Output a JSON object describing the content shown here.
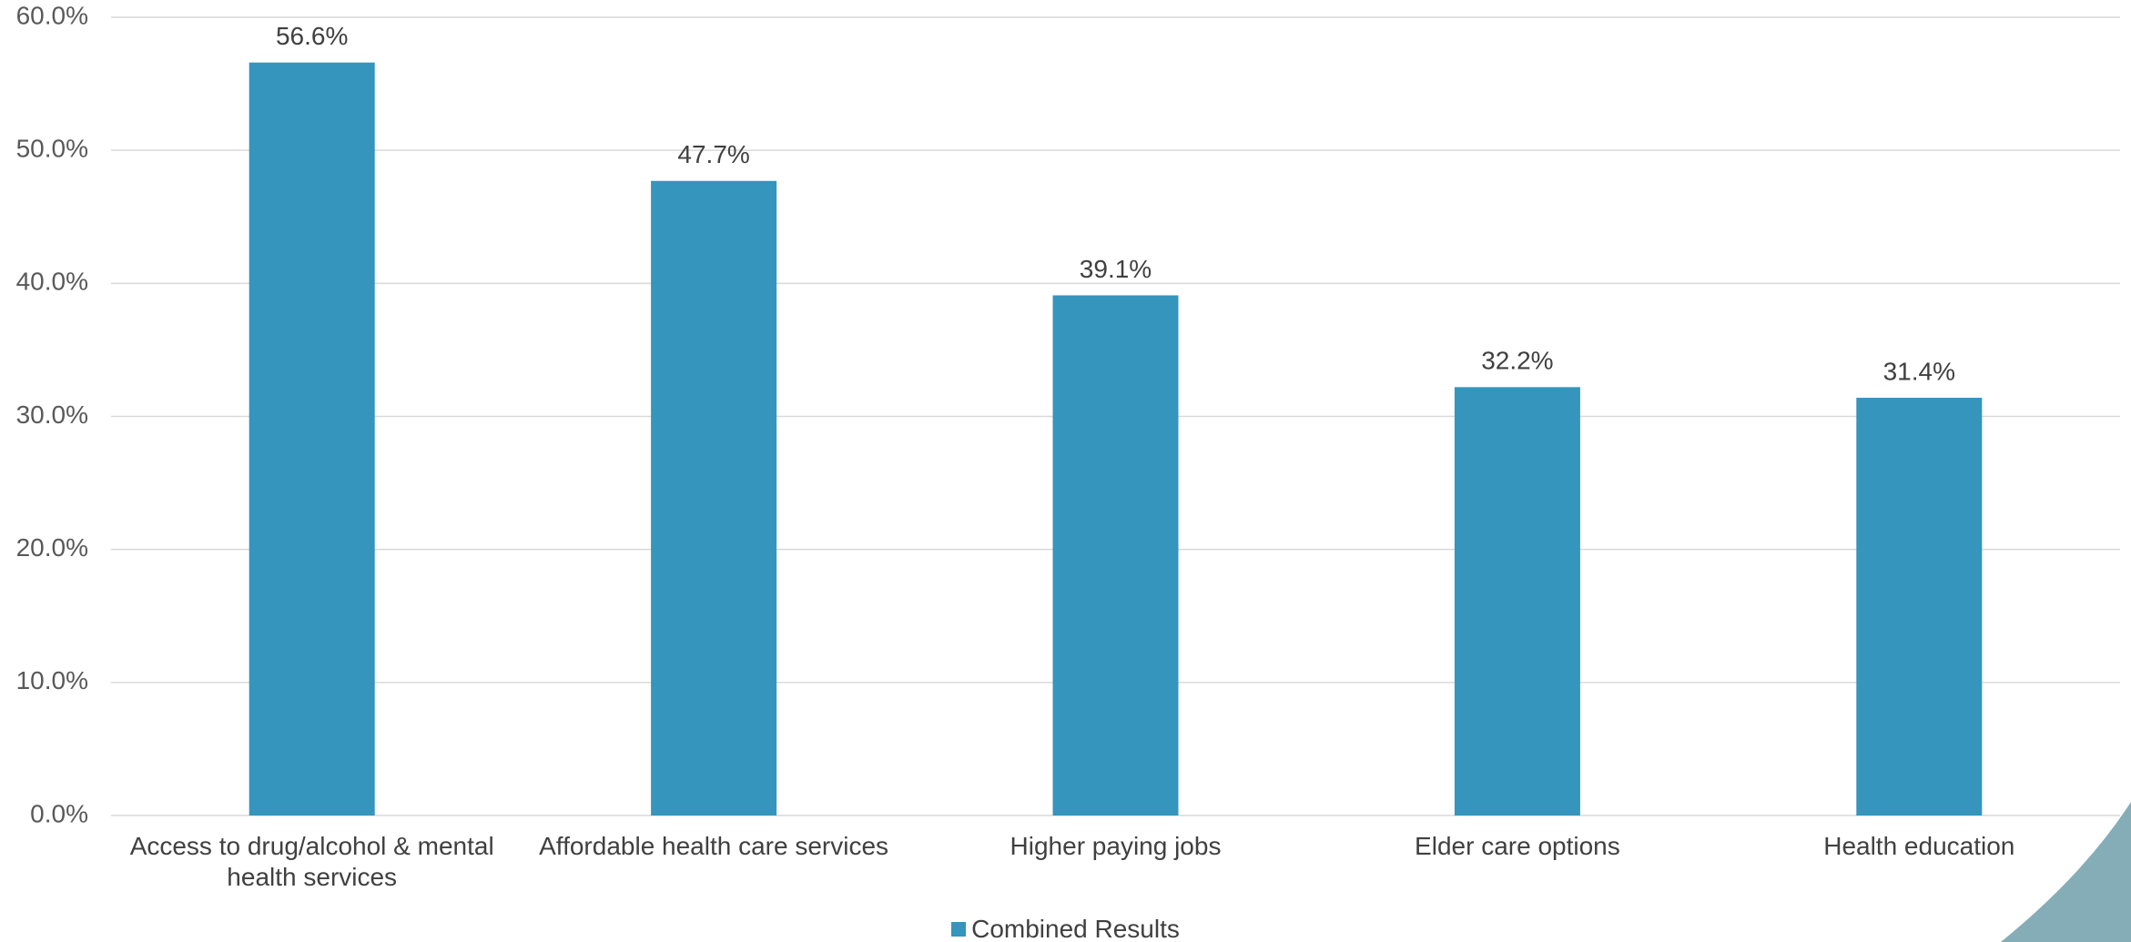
{
  "chart_data": {
    "type": "bar",
    "categories": [
      "Access to drug/alcohol & mental health services",
      "Affordable health care services",
      "Higher paying jobs",
      "Elder care options",
      "Health education"
    ],
    "series": [
      {
        "name": "Combined Results",
        "color": "#3595bc",
        "values": [
          56.6,
          47.7,
          39.1,
          32.2,
          31.4
        ],
        "value_labels": [
          "56.6%",
          "47.7%",
          "39.1%",
          "32.2%",
          "31.4%"
        ]
      }
    ],
    "ylim": [
      0,
      60
    ],
    "yticks": [
      {
        "value": 0,
        "label": "0.0%"
      },
      {
        "value": 10,
        "label": "10.0%"
      },
      {
        "value": 20,
        "label": "20.0%"
      },
      {
        "value": 30,
        "label": "30.0%"
      },
      {
        "value": 40,
        "label": "40.0%"
      },
      {
        "value": 50,
        "label": "50.0%"
      },
      {
        "value": 60,
        "label": "60.0%"
      }
    ],
    "grid": true,
    "legend": "bottom"
  }
}
